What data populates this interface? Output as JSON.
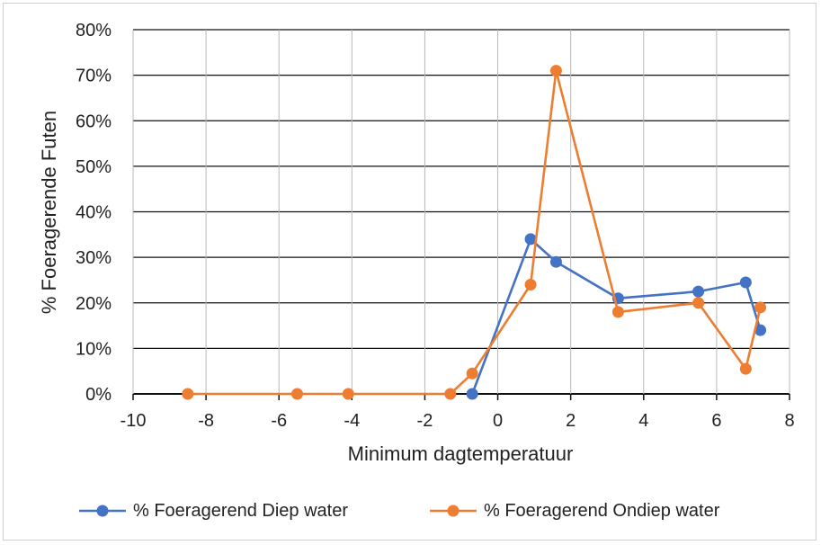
{
  "chart_data": {
    "type": "line",
    "xlabel": "Minimum dagtemperatuur",
    "ylabel": "% Foeragerende Futen",
    "xlim": [
      -10,
      8
    ],
    "ylim": [
      0,
      80
    ],
    "x_ticks": [
      "-10",
      "-8",
      "-6",
      "-4",
      "-2",
      "0",
      "2",
      "4",
      "6",
      "8"
    ],
    "y_ticks": [
      "0%",
      "10%",
      "20%",
      "30%",
      "40%",
      "50%",
      "60%",
      "70%",
      "80%"
    ],
    "grid": true,
    "legend_position": "bottom",
    "series": [
      {
        "name": "% Foeragerend Diep water",
        "color": "#4472C4",
        "points": [
          {
            "x": -0.7,
            "y": 0
          },
          {
            "x": 0.9,
            "y": 34
          },
          {
            "x": 1.6,
            "y": 29
          },
          {
            "x": 3.3,
            "y": 21
          },
          {
            "x": 5.5,
            "y": 22.5
          },
          {
            "x": 6.8,
            "y": 24.5
          },
          {
            "x": 7.2,
            "y": 14
          }
        ]
      },
      {
        "name": "% Foeragerend Ondiep water",
        "color": "#ED7D31",
        "points": [
          {
            "x": -8.5,
            "y": 0
          },
          {
            "x": -5.5,
            "y": 0
          },
          {
            "x": -4.1,
            "y": 0
          },
          {
            "x": -1.3,
            "y": 0
          },
          {
            "x": -0.7,
            "y": 4.5
          },
          {
            "x": 0.9,
            "y": 24
          },
          {
            "x": 1.6,
            "y": 71
          },
          {
            "x": 3.3,
            "y": 18
          },
          {
            "x": 5.5,
            "y": 20
          },
          {
            "x": 6.8,
            "y": 5.5
          },
          {
            "x": 7.2,
            "y": 19
          }
        ]
      }
    ]
  }
}
